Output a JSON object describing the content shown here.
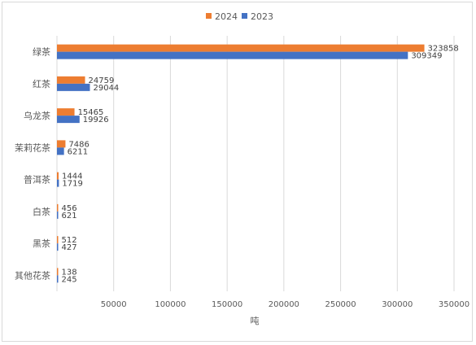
{
  "chart_data": {
    "type": "bar",
    "orientation": "horizontal",
    "categories": [
      "绿茶",
      "红茶",
      "乌龙茶",
      "茉莉花茶",
      "普洱茶",
      "白茶",
      "黑茶",
      "其他花茶"
    ],
    "series": [
      {
        "name": "2024",
        "color": "#ED7D31",
        "values": [
          323858,
          24759,
          15465,
          7486,
          1444,
          456,
          512,
          138
        ]
      },
      {
        "name": "2023",
        "color": "#4472C4",
        "values": [
          309349,
          29044,
          19926,
          6211,
          1719,
          621,
          427,
          245
        ]
      }
    ],
    "xlabel": "吨",
    "xlim": [
      0,
      350000
    ],
    "xticks": [
      "50000",
      "100000",
      "150000",
      "200000",
      "250000",
      "300000",
      "350000"
    ],
    "legend_position": "top",
    "grid": "vertical"
  }
}
